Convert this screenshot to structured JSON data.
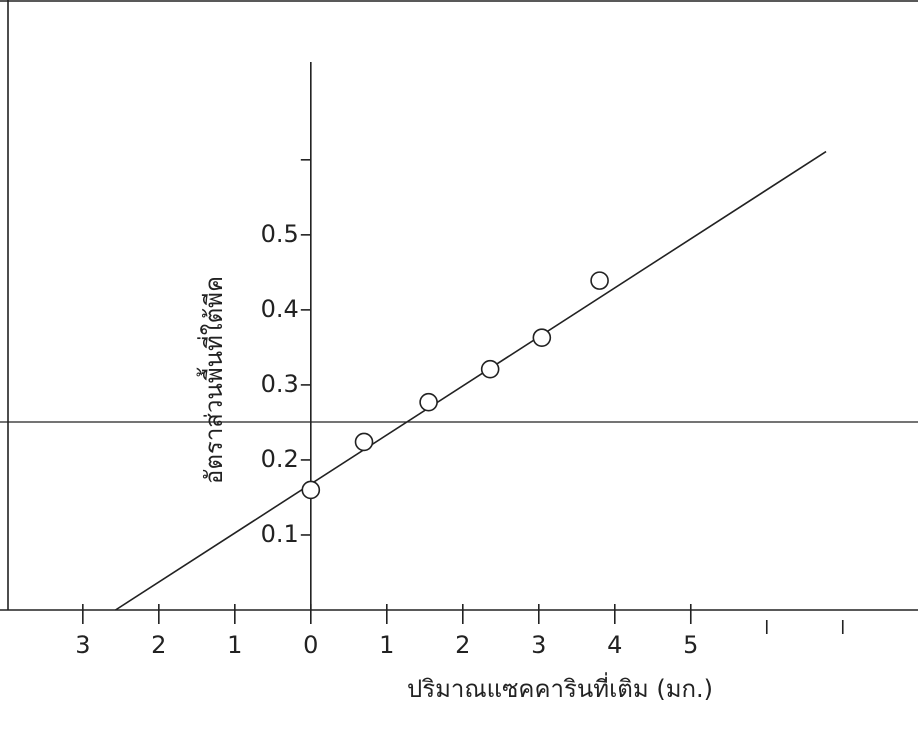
{
  "chart_data": {
    "type": "scatter",
    "xlabel": "ปริมาณแซคคารินที่เติม (มก.)",
    "ylabel": "อัตราส่วนพื้นที่ใต้พีค",
    "x": [
      0,
      0.7,
      1.55,
      2.36,
      3.04,
      3.8
    ],
    "values": [
      0.16,
      0.224,
      0.277,
      0.321,
      0.363,
      0.439
    ],
    "fit": {
      "x": [
        -2.57,
        6.78
      ],
      "y": [
        0,
        0.611
      ]
    },
    "color": "#222222",
    "xlim": [
      -4.09,
      7.99
    ],
    "ylim": [
      0,
      0.813
    ],
    "xticks": [
      {
        "value": -3,
        "label": "3"
      },
      {
        "value": -2,
        "label": "2"
      },
      {
        "value": -1,
        "label": "1"
      },
      0,
      1,
      2,
      3,
      4,
      5
    ],
    "xminor": [
      6,
      7
    ],
    "yticks": [
      0.1,
      0.2,
      0.3,
      0.4,
      0.5
    ],
    "yminor": [
      0.6
    ]
  }
}
